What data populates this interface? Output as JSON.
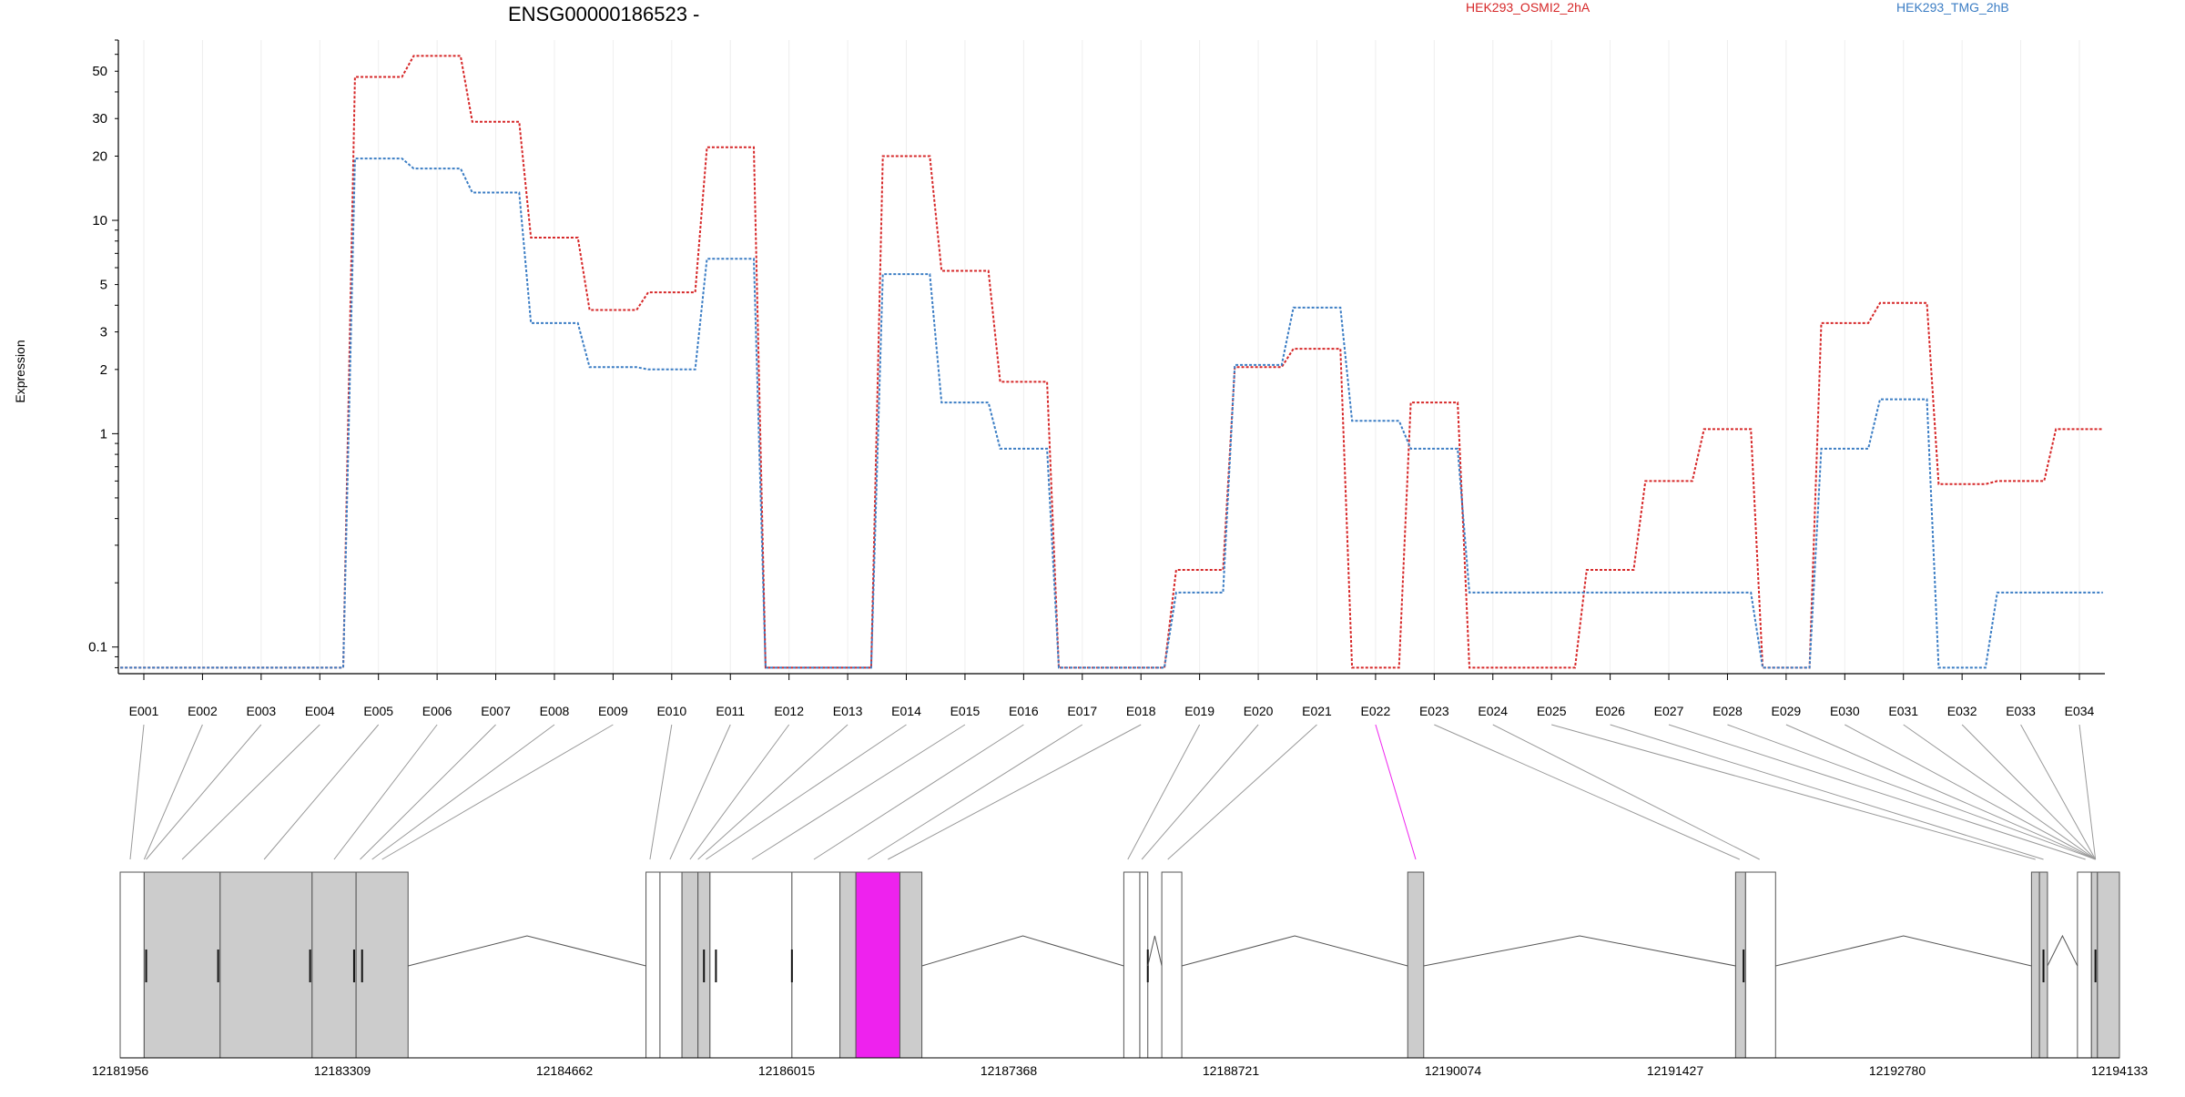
{
  "chart_data": {
    "type": "line",
    "title": "ENSG00000186523 -",
    "xlabel": "",
    "ylabel": "Expression",
    "y_scale": "log",
    "y_ticks": [
      "0.1",
      "1",
      "2",
      "3",
      "5",
      "10",
      "20",
      "30",
      "50"
    ],
    "categories": [
      "E001",
      "E002",
      "E003",
      "E004",
      "E005",
      "E006",
      "E007",
      "E008",
      "E009",
      "E010",
      "E011",
      "E012",
      "E013",
      "E014",
      "E015",
      "E016",
      "E017",
      "E018",
      "E019",
      "E020",
      "E021",
      "E022",
      "E023",
      "E024",
      "E025",
      "E026",
      "E027",
      "E028",
      "E029",
      "E030",
      "E031",
      "E032",
      "E033",
      "E034"
    ],
    "legend_position": "top",
    "grid": true,
    "series": [
      {
        "name": "HEK293_OSMI2_2hA",
        "color": "#d62728",
        "values": [
          0.08,
          0.08,
          0.08,
          0.08,
          47,
          59,
          29,
          8.3,
          3.8,
          4.6,
          22,
          0.08,
          0.08,
          20,
          5.8,
          1.75,
          0.08,
          0.08,
          0.23,
          2.05,
          2.5,
          0.08,
          1.4,
          0.08,
          0.08,
          0.23,
          0.6,
          1.05,
          0.08,
          3.3,
          4.1,
          0.58,
          0.6,
          1.05
        ]
      },
      {
        "name": "HEK293_TMG_2hB",
        "color": "#3b7dc4",
        "values": [
          0.08,
          0.08,
          0.08,
          0.08,
          19.5,
          17.5,
          13.5,
          3.3,
          2.05,
          2.0,
          6.6,
          0.08,
          0.08,
          5.6,
          1.4,
          0.85,
          0.08,
          0.08,
          0.18,
          2.1,
          3.9,
          1.15,
          0.85,
          0.18,
          0.18,
          0.18,
          0.18,
          0.18,
          0.08,
          0.85,
          1.45,
          0.08,
          0.18,
          0.18
        ]
      }
    ],
    "gene_model": {
      "coordinate_labels": [
        "12181956",
        "12183309",
        "12184662",
        "12186015",
        "12187368",
        "12188721",
        "12190074",
        "12191427",
        "12192780",
        "12194133"
      ],
      "highlight_exon": "E022",
      "highlight_color": "#ee22ee",
      "exon_fill": "#cccccc",
      "utr_fill": "#ffffff"
    }
  }
}
